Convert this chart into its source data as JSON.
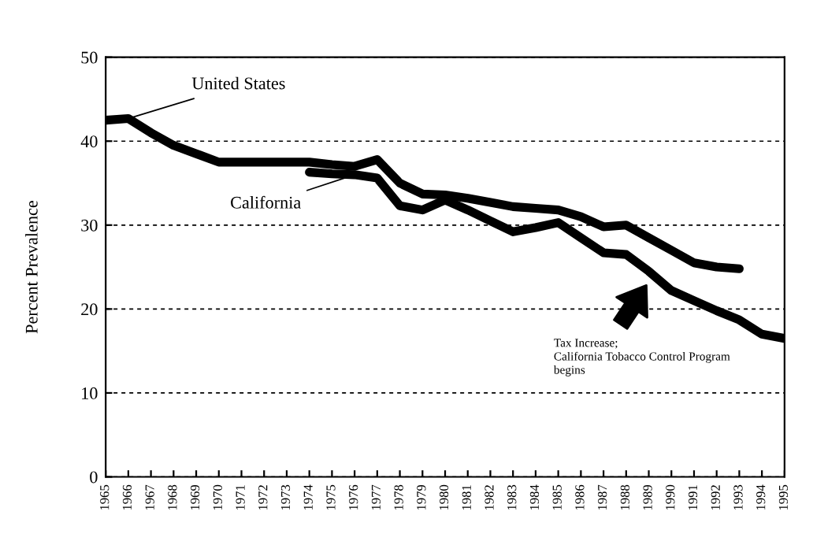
{
  "chart_data": {
    "type": "line",
    "ylabel": "Percent Prevalence",
    "xlim": [
      1965,
      1995
    ],
    "xticks": [
      1965,
      1966,
      1967,
      1968,
      1969,
      1970,
      1971,
      1972,
      1973,
      1974,
      1975,
      1976,
      1977,
      1978,
      1979,
      1980,
      1981,
      1982,
      1983,
      1984,
      1985,
      1986,
      1987,
      1988,
      1989,
      1990,
      1991,
      1992,
      1993,
      1994,
      1995
    ],
    "ylim": [
      0,
      50
    ],
    "yticks": [
      0,
      10,
      20,
      30,
      40,
      50
    ],
    "grid": "y",
    "line_style": "solid",
    "marker": "none",
    "legend": false,
    "series": [
      {
        "name": "United States",
        "color": "#000000",
        "x": [
          1965,
          1966,
          1967,
          1968,
          1969,
          1970,
          1971,
          1972,
          1973,
          1974,
          1975,
          1976,
          1977,
          1978,
          1979,
          1980,
          1981,
          1982,
          1983,
          1984,
          1985,
          1986,
          1987,
          1988,
          1989,
          1990,
          1991,
          1992,
          1993
        ],
        "values": [
          42.5,
          42.7,
          41,
          39.5,
          38.5,
          37.5,
          37.5,
          37.5,
          37.5,
          37.5,
          37.2,
          37,
          37.8,
          35,
          33.7,
          33.6,
          33.2,
          32.7,
          32.2,
          32,
          31.8,
          31,
          29.8,
          30,
          28.5,
          27,
          25.5,
          25,
          24.8
        ]
      },
      {
        "name": "California",
        "color": "#000000",
        "x": [
          1974,
          1975,
          1976,
          1977,
          1978,
          1979,
          1980,
          1981,
          1982,
          1983,
          1984,
          1985,
          1986,
          1987,
          1988,
          1989,
          1990,
          1991,
          1992,
          1993,
          1994,
          1995
        ],
        "values": [
          36.3,
          36.1,
          36,
          35.6,
          32.3,
          31.8,
          33,
          31.8,
          30.5,
          29.2,
          29.7,
          30.3,
          28.5,
          26.7,
          26.5,
          24.5,
          22.2,
          21,
          19.8,
          18.7,
          17,
          16.5
        ]
      }
    ],
    "annotations": [
      "Tax Increase;\nCalifornia Tobacco Control Program\nbegins"
    ]
  }
}
